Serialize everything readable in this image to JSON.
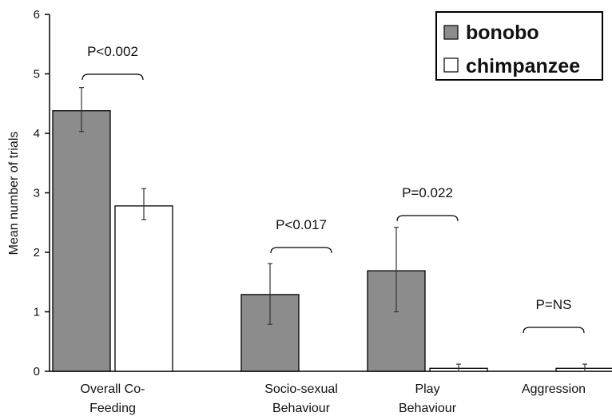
{
  "chart_data": {
    "type": "bar",
    "ylabel": "Mean number of trials",
    "ylim": [
      0,
      6
    ],
    "yticks": [
      "0",
      "1",
      "2",
      "3",
      "4",
      "5",
      "6"
    ],
    "categories": [
      [
        "Overall Co-",
        "Feeding"
      ],
      [
        "Socio-sexual",
        "Behaviour"
      ],
      [
        "Play",
        "Behaviour"
      ],
      [
        "Aggression"
      ]
    ],
    "series": [
      {
        "name": "bonobo",
        "color": "#8c8c8c",
        "values": [
          4.38,
          1.29,
          1.69,
          0
        ],
        "error_low": [
          4.03,
          0.79,
          1.0,
          null
        ],
        "error_high": [
          4.77,
          1.81,
          2.42,
          null
        ]
      },
      {
        "name": "chimpanzee",
        "color": "#ffffff",
        "values": [
          2.78,
          0,
          0.05,
          0.05
        ],
        "error_low": [
          2.55,
          null,
          0.0,
          0.0
        ],
        "error_high": [
          3.07,
          null,
          0.12,
          0.12
        ]
      }
    ],
    "annotations": [
      "P<0.002",
      "P<0.017",
      "P=0.022",
      "P=NS"
    ],
    "legend_position": "top-right",
    "grid": false
  }
}
